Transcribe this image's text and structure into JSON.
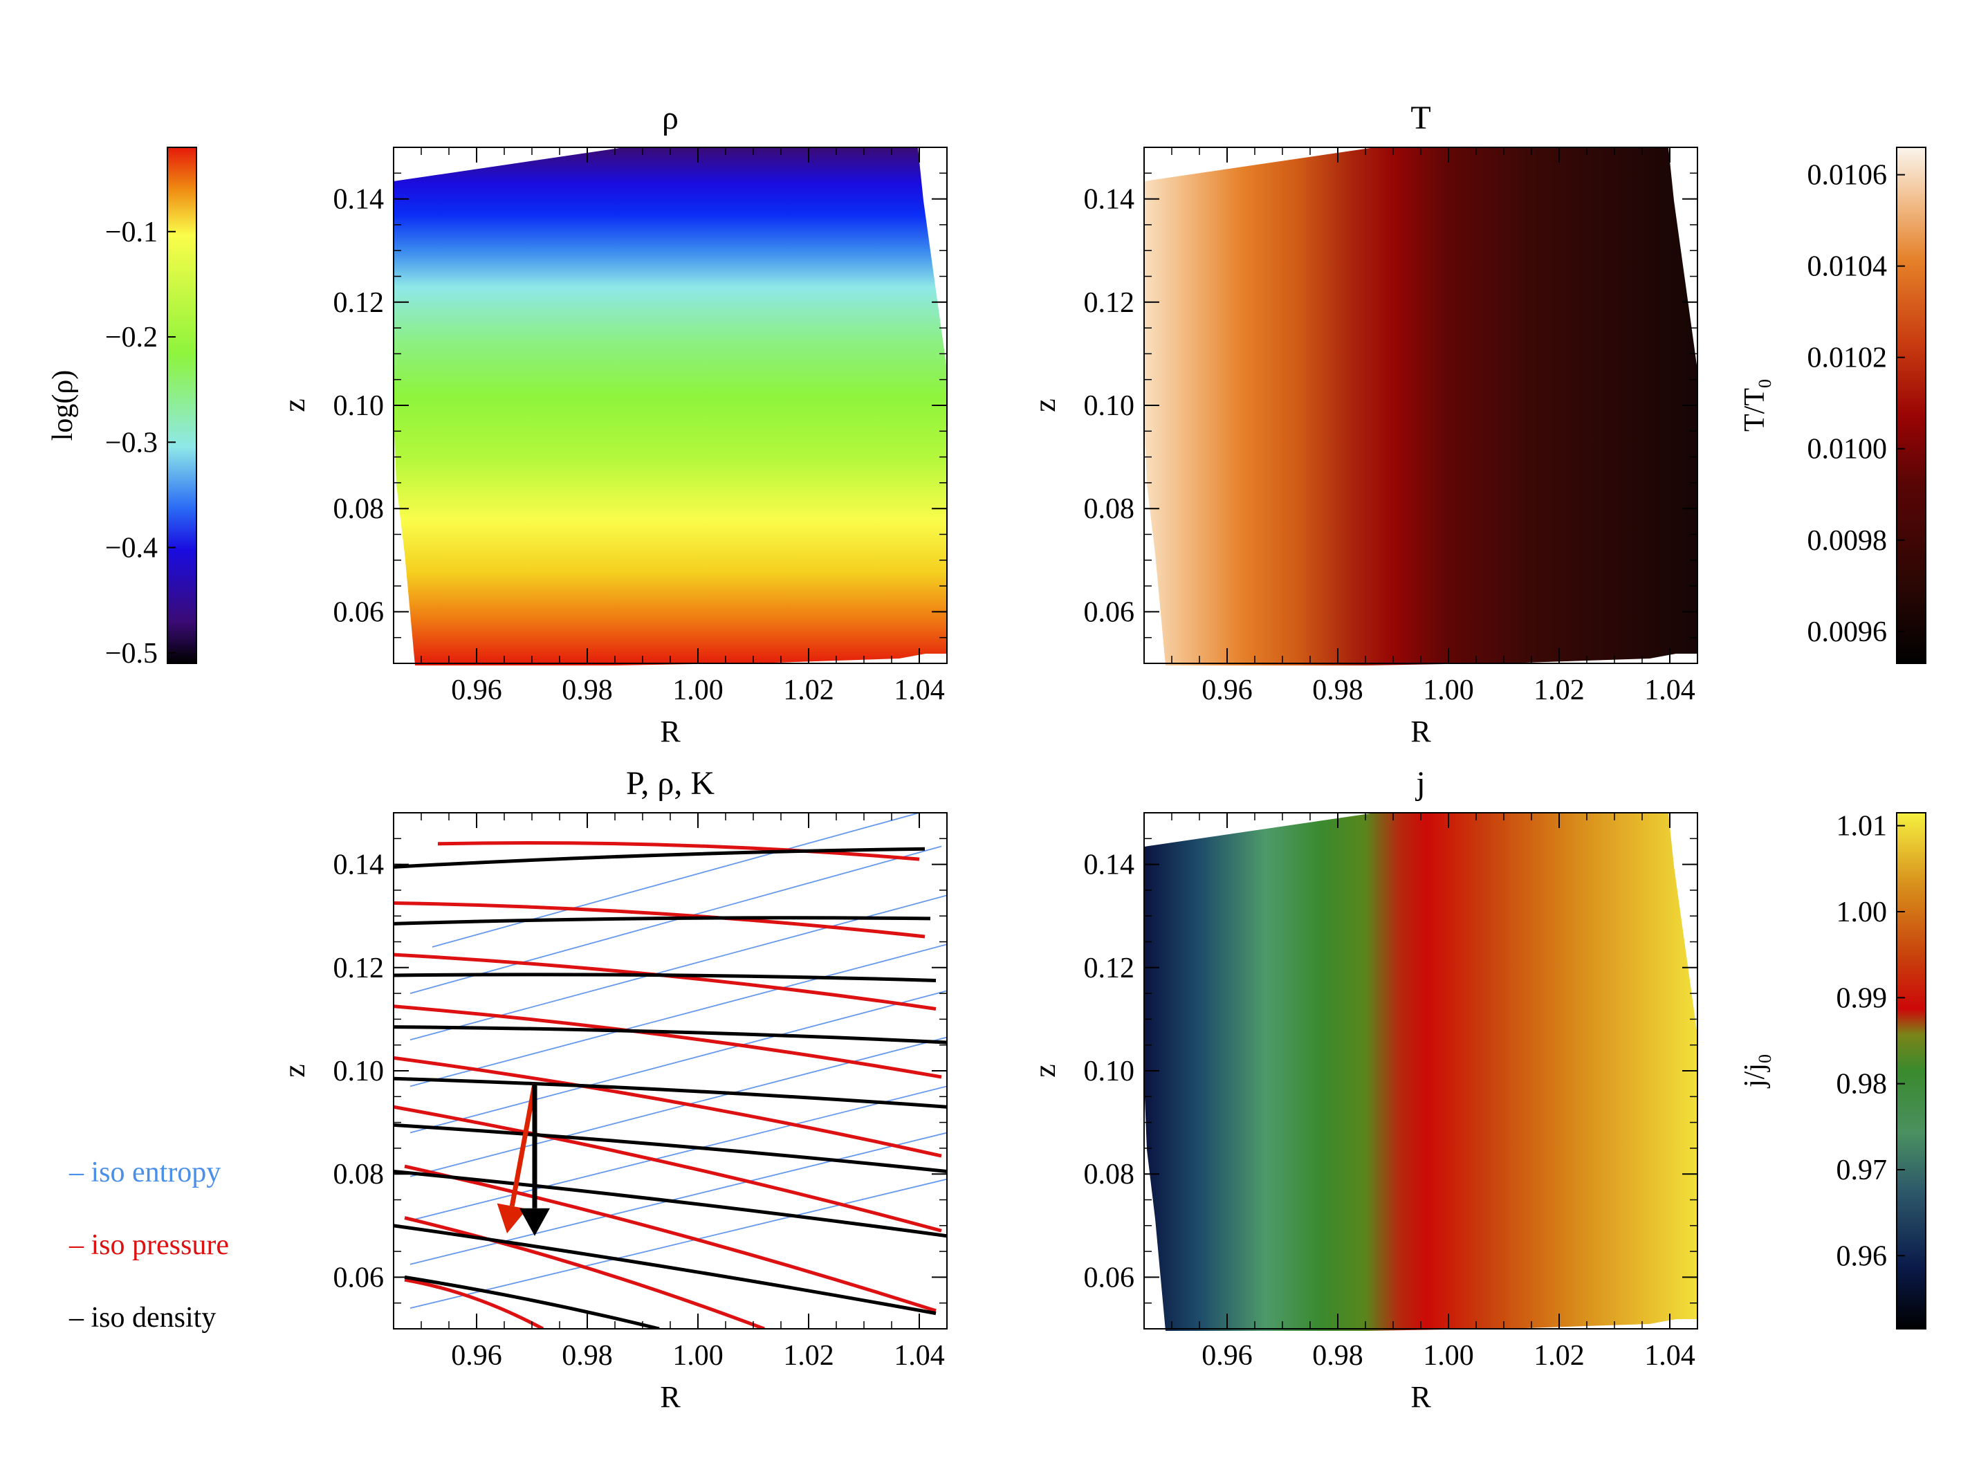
{
  "chart_data": [
    {
      "type": "heatmap",
      "title": "ρ",
      "xlabel": "R",
      "ylabel": "z",
      "xlim": [
        0.945,
        1.045
      ],
      "ylim": [
        0.05,
        0.15
      ],
      "xticks": [
        "0.96",
        "0.98",
        "1.00",
        "1.02",
        "1.04"
      ],
      "yticks": [
        "0.06",
        "0.08",
        "0.10",
        "0.12",
        "0.14"
      ],
      "colormap": "rainbow",
      "colorbar": {
        "label": "log(ρ)",
        "range": [
          -0.51,
          -0.02
        ],
        "ticks": [
          "−0.1",
          "−0.2",
          "−0.3",
          "−0.4",
          "−0.5"
        ],
        "tick_values": [
          -0.1,
          -0.2,
          -0.3,
          -0.4,
          -0.5
        ],
        "placement": "left"
      }
    },
    {
      "type": "heatmap",
      "title": "T",
      "xlabel": "R",
      "ylabel": "z",
      "xlim": [
        0.945,
        1.045
      ],
      "ylim": [
        0.05,
        0.15
      ],
      "xticks": [
        "0.96",
        "0.98",
        "1.00",
        "1.02",
        "1.04"
      ],
      "yticks": [
        "0.06",
        "0.08",
        "0.10",
        "0.12",
        "0.14"
      ],
      "colormap": "heat",
      "colorbar": {
        "label": "T/T",
        "label_sub": "0",
        "range": [
          0.00953,
          0.01066
        ],
        "ticks": [
          "0.0106",
          "0.0104",
          "0.0102",
          "0.0100",
          "0.0098",
          "0.0096"
        ],
        "tick_values": [
          0.0106,
          0.0104,
          0.0102,
          0.01,
          0.0098,
          0.0096
        ],
        "placement": "right"
      }
    },
    {
      "type": "line",
      "title": "P, ρ, K",
      "xlabel": "R",
      "ylabel": "z",
      "xlim": [
        0.945,
        1.045
      ],
      "ylim": [
        0.05,
        0.15
      ],
      "xticks": [
        "0.96",
        "0.98",
        "1.00",
        "1.02",
        "1.04"
      ],
      "yticks": [
        "0.06",
        "0.08",
        "0.10",
        "0.12",
        "0.14"
      ],
      "legend": [
        "– iso entropy",
        "– iso pressure",
        "– iso density"
      ],
      "legend_placement": "left",
      "series": [
        {
          "name": "iso entropy",
          "color": "#6699ee",
          "lines": [
            [
              [
                0.952,
                0.124
              ],
              [
                1.04,
                0.15
              ]
            ],
            [
              [
                0.948,
                0.115
              ],
              [
                1.044,
                0.1435
              ]
            ],
            [
              [
                0.948,
                0.106
              ],
              [
                1.045,
                0.134
              ]
            ],
            [
              [
                0.948,
                0.097
              ],
              [
                1.045,
                0.1245
              ]
            ],
            [
              [
                0.948,
                0.088
              ],
              [
                1.045,
                0.1155
              ]
            ],
            [
              [
                0.948,
                0.0795
              ],
              [
                1.045,
                0.1065
              ]
            ],
            [
              [
                0.948,
                0.071
              ],
              [
                1.045,
                0.097
              ]
            ],
            [
              [
                0.948,
                0.0625
              ],
              [
                1.045,
                0.088
              ]
            ],
            [
              [
                0.948,
                0.054
              ],
              [
                1.045,
                0.079
              ]
            ]
          ]
        },
        {
          "name": "iso pressure",
          "color": "#dd1111",
          "lines": [
            [
              [
                0.953,
                0.144
              ],
              [
                1.04,
                0.141
              ]
            ],
            [
              [
                0.945,
                0.1325
              ],
              [
                1.041,
                0.126
              ]
            ],
            [
              [
                0.945,
                0.1225
              ],
              [
                1.043,
                0.112
              ]
            ],
            [
              [
                0.945,
                0.1125
              ],
              [
                1.044,
                0.0988
              ]
            ],
            [
              [
                0.945,
                0.1025
              ],
              [
                1.044,
                0.0835
              ]
            ],
            [
              [
                0.945,
                0.093
              ],
              [
                1.044,
                0.069
              ]
            ],
            [
              [
                0.947,
                0.0815
              ],
              [
                1.043,
                0.0535
              ]
            ],
            [
              [
                0.947,
                0.0715
              ],
              [
                1.012,
                0.05
              ]
            ],
            [
              [
                0.947,
                0.0595
              ],
              [
                0.972,
                0.05
              ]
            ]
          ]
        },
        {
          "name": "iso density",
          "color": "#000000",
          "lines": [
            [
              [
                0.945,
                0.1395
              ],
              [
                1.041,
                0.143
              ]
            ],
            [
              [
                0.945,
                0.1285
              ],
              [
                1.042,
                0.1295
              ]
            ],
            [
              [
                0.945,
                0.1185
              ],
              [
                1.043,
                0.1175
              ]
            ],
            [
              [
                0.945,
                0.1085
              ],
              [
                1.045,
                0.1055
              ]
            ],
            [
              [
                0.945,
                0.0985
              ],
              [
                1.045,
                0.093
              ]
            ],
            [
              [
                0.945,
                0.0895
              ],
              [
                1.045,
                0.0805
              ]
            ],
            [
              [
                0.945,
                0.0805
              ],
              [
                1.045,
                0.068
              ]
            ],
            [
              [
                0.945,
                0.07
              ],
              [
                1.043,
                0.053
              ]
            ],
            [
              [
                0.947,
                0.06
              ],
              [
                0.993,
                0.05
              ]
            ]
          ]
        }
      ],
      "arrows": [
        {
          "color": "#dd2200",
          "from": [
            0.9705,
            0.0975
          ],
          "to": [
            0.9655,
            0.0685
          ]
        },
        {
          "color": "#000000",
          "from": [
            0.9705,
            0.0975
          ],
          "to": [
            0.9705,
            0.068
          ]
        }
      ]
    },
    {
      "type": "heatmap",
      "title": "j",
      "xlabel": "R",
      "ylabel": "z",
      "xlim": [
        0.945,
        1.045
      ],
      "ylim": [
        0.05,
        0.15
      ],
      "xticks": [
        "0.96",
        "0.98",
        "1.00",
        "1.02",
        "1.04"
      ],
      "yticks": [
        "0.06",
        "0.08",
        "0.10",
        "0.12",
        "0.14"
      ],
      "colormap": "earth",
      "colorbar": {
        "label": "j/j",
        "label_sub": "0",
        "range": [
          0.9515,
          1.0115
        ],
        "ticks": [
          "1.01",
          "1.00",
          "0.99",
          "0.98",
          "0.97",
          "0.96"
        ],
        "tick_values": [
          1.01,
          1.0,
          0.99,
          0.98,
          0.97,
          0.96
        ],
        "placement": "right"
      }
    }
  ]
}
